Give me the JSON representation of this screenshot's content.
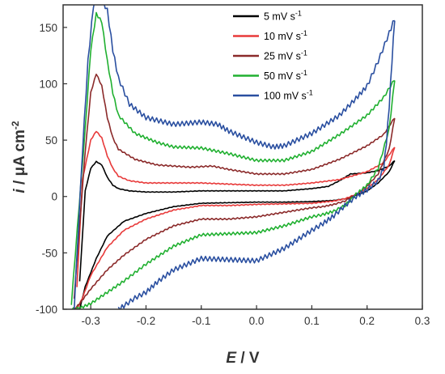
{
  "chart_data": {
    "type": "line",
    "title": "",
    "xlabel": {
      "var": "E",
      "unit": " / V"
    },
    "ylabel": {
      "var": "i",
      "unit": " / μA cm",
      "sup": "-2"
    },
    "xlim": [
      -0.35,
      0.3
    ],
    "ylim": [
      -100,
      170
    ],
    "xticks": [
      -0.3,
      -0.2,
      -0.1,
      0.0,
      0.1,
      0.2,
      0.3
    ],
    "xtick_labels": [
      "-0.3",
      "-0.2",
      "-0.1",
      "0.0",
      "0.1",
      "0.2",
      "0.3"
    ],
    "yticks": [
      -100,
      -50,
      0,
      50,
      100,
      150
    ],
    "ytick_labels": [
      "-100",
      "-50",
      "0",
      "50",
      "100",
      "150"
    ],
    "grid": false,
    "legend_position": "top-right",
    "series": [
      {
        "name": "5 mV s",
        "name_sup": "-1",
        "color": "#000000",
        "anodic": {
          "x": [
            -0.32,
            -0.31,
            -0.3,
            -0.29,
            -0.28,
            -0.27,
            -0.26,
            -0.25,
            -0.23,
            -0.2,
            -0.15,
            -0.1,
            -0.05,
            0.0,
            0.05,
            0.1,
            0.13,
            0.15,
            0.17,
            0.2,
            0.22,
            0.24,
            0.25
          ],
          "y": [
            -75,
            5,
            25,
            31,
            28,
            17,
            10,
            7,
            5,
            4,
            4,
            5,
            5,
            5,
            5,
            7,
            9,
            14,
            20,
            21,
            23,
            27,
            32
          ]
        },
        "cathodic": {
          "x": [
            0.25,
            0.24,
            0.22,
            0.2,
            0.18,
            0.16,
            0.14,
            0.12,
            0.1,
            0.05,
            0.0,
            -0.05,
            -0.1,
            -0.15,
            -0.2,
            -0.24,
            -0.27,
            -0.29,
            -0.31,
            -0.32
          ],
          "y": [
            32,
            22,
            12,
            5,
            1,
            -2,
            -3.5,
            -4,
            -4.5,
            -5,
            -5,
            -5.5,
            -6,
            -9,
            -15,
            -22,
            -35,
            -55,
            -80,
            -100
          ]
        }
      },
      {
        "name": "10 mV s",
        "name_sup": "-1",
        "color": "#e83a3a",
        "anodic": {
          "x": [
            -0.325,
            -0.315,
            -0.3,
            -0.29,
            -0.28,
            -0.27,
            -0.26,
            -0.25,
            -0.23,
            -0.2,
            -0.15,
            -0.1,
            -0.05,
            0.0,
            0.05,
            0.1,
            0.15,
            0.2,
            0.23,
            0.25
          ],
          "y": [
            -80,
            15,
            50,
            58,
            52,
            36,
            25,
            18,
            14,
            12,
            12,
            12,
            11,
            10,
            10,
            12,
            15,
            22,
            30,
            44
          ]
        },
        "cathodic": {
          "x": [
            0.25,
            0.24,
            0.22,
            0.2,
            0.18,
            0.16,
            0.14,
            0.12,
            0.1,
            0.05,
            0.0,
            -0.05,
            -0.1,
            -0.15,
            -0.2,
            -0.24,
            -0.27,
            -0.3,
            -0.315,
            -0.325
          ],
          "y": [
            44,
            28,
            15,
            7,
            2,
            -2,
            -4,
            -5,
            -6,
            -6.5,
            -7,
            -8,
            -8,
            -12,
            -20,
            -30,
            -45,
            -70,
            -90,
            -100
          ]
        }
      },
      {
        "name": "25 mV s",
        "name_sup": "-1",
        "color": "#8b2a2a",
        "anodic": {
          "x": [
            -0.33,
            -0.31,
            -0.3,
            -0.29,
            -0.28,
            -0.27,
            -0.26,
            -0.25,
            -0.22,
            -0.18,
            -0.12,
            -0.08,
            -0.05,
            0.0,
            0.05,
            0.1,
            0.15,
            0.2,
            0.23,
            0.25
          ],
          "y": [
            -90,
            40,
            92,
            109,
            98,
            70,
            52,
            42,
            33,
            28,
            26,
            27,
            24,
            20,
            20,
            24,
            33,
            45,
            55,
            70
          ]
        },
        "cathodic": {
          "x": [
            0.25,
            0.24,
            0.22,
            0.2,
            0.18,
            0.16,
            0.14,
            0.12,
            0.1,
            0.05,
            0.0,
            -0.05,
            -0.1,
            -0.15,
            -0.2,
            -0.24,
            -0.27,
            -0.3,
            -0.32,
            -0.33
          ],
          "y": [
            70,
            42,
            20,
            9,
            2,
            -4,
            -7,
            -9,
            -10,
            -14,
            -18,
            -20,
            -20,
            -26,
            -38,
            -52,
            -65,
            -82,
            -95,
            -100
          ]
        }
      },
      {
        "name": "50 mV s",
        "name_sup": "-1",
        "color": "#20b030",
        "anodic": {
          "x": [
            -0.335,
            -0.31,
            -0.3,
            -0.29,
            -0.28,
            -0.27,
            -0.26,
            -0.25,
            -0.22,
            -0.18,
            -0.15,
            -0.1,
            -0.05,
            0.0,
            0.05,
            0.1,
            0.15,
            0.2,
            0.23,
            0.25
          ],
          "y": [
            -95,
            60,
            130,
            162,
            155,
            120,
            92,
            72,
            56,
            48,
            44,
            43,
            38,
            32,
            32,
            40,
            55,
            72,
            88,
            104
          ]
        },
        "cathodic": {
          "x": [
            0.25,
            0.24,
            0.22,
            0.2,
            0.18,
            0.16,
            0.14,
            0.12,
            0.1,
            0.05,
            0.0,
            -0.05,
            -0.1,
            -0.15,
            -0.2,
            -0.24,
            -0.27,
            -0.3,
            -0.32,
            -0.335
          ],
          "y": [
            104,
            60,
            25,
            10,
            2,
            -8,
            -13,
            -16,
            -18,
            -26,
            -32,
            -33,
            -34,
            -44,
            -60,
            -75,
            -85,
            -95,
            -99,
            -100
          ]
        }
      },
      {
        "name": "100 mV s",
        "name_sup": "-1",
        "color": "#2a4fa0",
        "anodic": {
          "x": [
            -0.33,
            -0.315,
            -0.305,
            -0.295,
            -0.285,
            -0.27,
            -0.26,
            -0.25,
            -0.23,
            -0.2,
            -0.15,
            -0.1,
            -0.07,
            -0.05,
            0.0,
            0.03,
            0.05,
            0.1,
            0.15,
            0.18,
            0.2,
            0.22,
            0.24,
            0.25
          ],
          "y": [
            -100,
            40,
            120,
            170,
            180,
            165,
            130,
            105,
            82,
            70,
            64,
            66,
            64,
            58,
            48,
            44,
            45,
            56,
            72,
            87,
            98,
            120,
            145,
            158
          ]
        },
        "cathodic": {
          "x": [
            0.25,
            0.245,
            0.24,
            0.235,
            0.23,
            0.22,
            0.2,
            0.18,
            0.16,
            0.14,
            0.12,
            0.1,
            0.05,
            0.0,
            -0.05,
            -0.1,
            -0.15,
            -0.18,
            -0.2,
            -0.22,
            -0.24,
            -0.25
          ],
          "y": [
            158,
            120,
            80,
            48,
            25,
            14,
            6,
            0,
            -8,
            -17,
            -24,
            -30,
            -46,
            -57,
            -56,
            -55,
            -65,
            -76,
            -85,
            -90,
            -97,
            -100
          ]
        }
      }
    ]
  }
}
